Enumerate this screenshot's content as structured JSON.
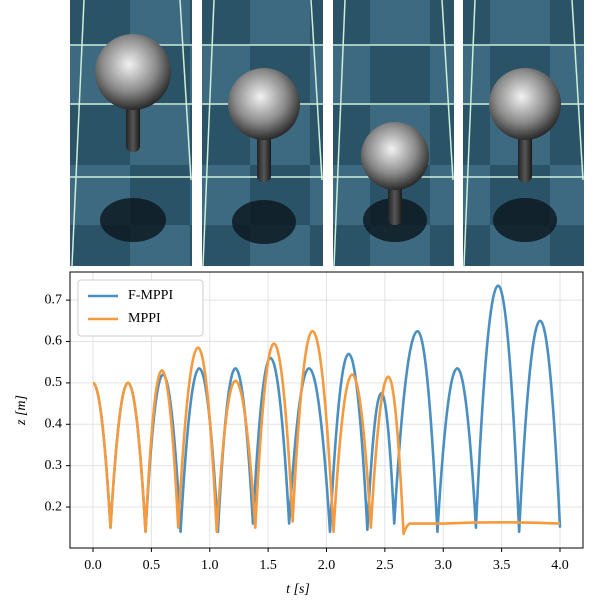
{
  "chart_data": {
    "type": "line",
    "xlabel": "t [s]",
    "ylabel": "z [m]",
    "xlim": [
      -0.197,
      4.197
    ],
    "ylim": [
      0.101,
      0.768
    ],
    "xticks": [
      {
        "value": 0,
        "label": "0.0"
      },
      0.5,
      {
        "value": 1,
        "label": "1.0"
      },
      1.5,
      {
        "value": 2,
        "label": "2.0"
      },
      2.5,
      {
        "value": 3,
        "label": "3.0"
      },
      3.5,
      {
        "value": 4,
        "label": "4.0"
      }
    ],
    "yticks": [
      0.2,
      0.3,
      0.4,
      0.5,
      0.6,
      0.7
    ],
    "grid": true,
    "legend": "upper left",
    "series": [
      {
        "name": "F-MPPI",
        "color": "#4a8fc1",
        "x": [
          0,
          0.15,
          0.3,
          0.45,
          0.6,
          0.75,
          0.91,
          1.07,
          1.22,
          1.37,
          1.52,
          1.68,
          1.85,
          2.03,
          2.19,
          2.35,
          2.47,
          2.58,
          2.78,
          2.95,
          3.12,
          3.28,
          3.47,
          3.65,
          3.83,
          4.0
        ],
        "values": [
          0.5,
          0.15,
          0.5,
          0.14,
          0.52,
          0.14,
          0.535,
          0.14,
          0.535,
          0.16,
          0.56,
          0.16,
          0.535,
          0.14,
          0.57,
          0.145,
          0.475,
          0.16,
          0.625,
          0.14,
          0.535,
          0.15,
          0.735,
          0.14,
          0.65,
          0.15
        ]
      },
      {
        "name": "MPPI",
        "color": "#f59a3e",
        "x": [
          0,
          0.15,
          0.3,
          0.45,
          0.59,
          0.73,
          0.9,
          1.06,
          1.22,
          1.39,
          1.55,
          1.71,
          1.88,
          2.06,
          2.22,
          2.38,
          2.53,
          2.66,
          2.72,
          3.0,
          3.5,
          4.0
        ],
        "values": [
          0.5,
          0.15,
          0.5,
          0.14,
          0.53,
          0.15,
          0.585,
          0.14,
          0.505,
          0.15,
          0.595,
          0.165,
          0.625,
          0.14,
          0.52,
          0.15,
          0.515,
          0.135,
          0.16,
          0.16,
          0.163,
          0.16
        ]
      }
    ]
  }
}
